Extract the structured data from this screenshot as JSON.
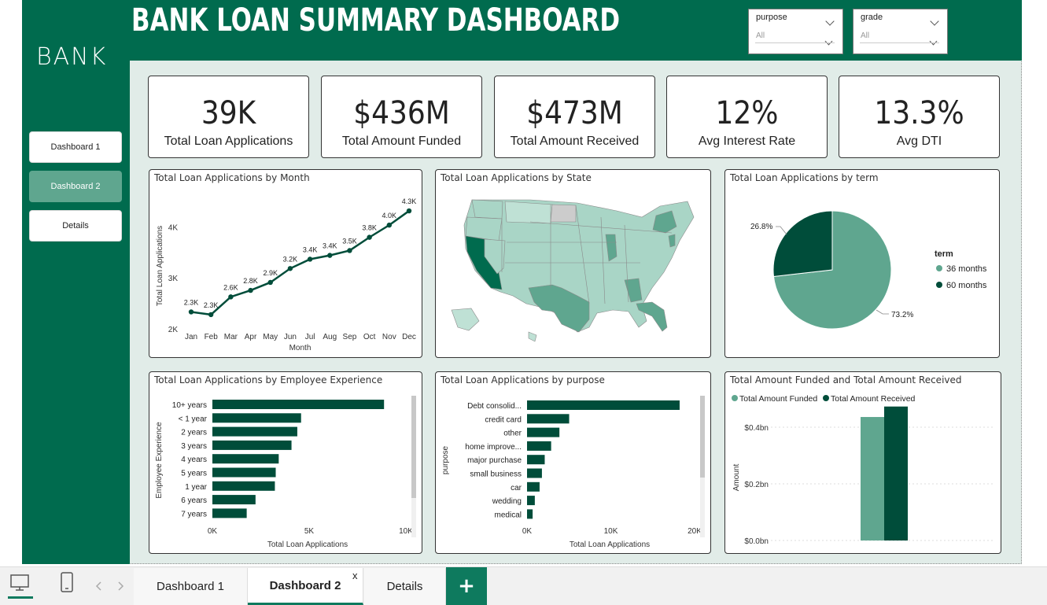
{
  "header": {
    "title": "BANK LOAN SUMMARY DASHBOARD",
    "logo": "BANK"
  },
  "filters": [
    {
      "label": "purpose",
      "value": "All"
    },
    {
      "label": "grade",
      "value": "All"
    }
  ],
  "nav": [
    {
      "label": "Dashboard 1",
      "active": false
    },
    {
      "label": "Dashboard 2",
      "active": true
    },
    {
      "label": "Details",
      "active": false
    }
  ],
  "kpis": [
    {
      "value": "39K",
      "label": "Total Loan Applications"
    },
    {
      "value": "$436M",
      "label": "Total Amount Funded"
    },
    {
      "value": "$473M",
      "label": "Total Amount Received"
    },
    {
      "value": "12%",
      "label": "Avg Interest Rate"
    },
    {
      "value": "13.3%",
      "label": "Avg DTI"
    }
  ],
  "panels": {
    "month": "Total Loan Applications by Month",
    "state": "Total Loan Applications by State",
    "term": "Total Loan Applications by term",
    "emp": "Total Loan Applications by Employee Experience",
    "purpose": "Total Loan Applications by purpose",
    "funded": "Total Amount Funded and Total Amount Received"
  },
  "colors": {
    "dark": "#004d3a",
    "mid": "#5fa68f",
    "light": "#a9d5c6",
    "brand": "#006b4e"
  },
  "chart_data": [
    {
      "id": "month",
      "type": "line",
      "title": "Total Loan Applications by Month",
      "xlabel": "Month",
      "ylabel": "Total Loan Applications",
      "categories": [
        "Jan",
        "Feb",
        "Mar",
        "Apr",
        "May",
        "Jun",
        "Jul",
        "Aug",
        "Sep",
        "Oct",
        "Nov",
        "Dec"
      ],
      "values": [
        2332,
        2279,
        2627,
        2755,
        2911,
        3184,
        3366,
        3441,
        3536,
        3796,
        4035,
        4314
      ],
      "labels": [
        "2.3K",
        "2.3K",
        "2.6K",
        "2.8K",
        "2.9K",
        "3.2K",
        "3.4K",
        "3.4K",
        "3.5K",
        "3.8K",
        "4.0K",
        "4.3K"
      ],
      "yticks": [
        "2K",
        "3K",
        "4K"
      ],
      "ylim": [
        2000,
        4500
      ]
    },
    {
      "id": "term",
      "type": "pie",
      "title": "Total Loan Applications by term",
      "legend_title": "term",
      "slices": [
        {
          "name": "36 months",
          "value": 73.2,
          "label": "73.2%"
        },
        {
          "name": "60 months",
          "value": 26.8,
          "label": "26.8%"
        }
      ]
    },
    {
      "id": "emp",
      "type": "bar",
      "orientation": "horizontal",
      "title": "Total Loan Applications by Employee Experience",
      "xlabel": "Total Loan Applications",
      "ylabel": "Employee Experience",
      "categories": [
        "10+ years",
        "< 1 year",
        "2 years",
        "3 years",
        "4 years",
        "5 years",
        "1 year",
        "6 years",
        "7 years"
      ],
      "values": [
        8870,
        4583,
        4388,
        4088,
        3428,
        3273,
        3229,
        2229,
        1773
      ],
      "xticks": [
        "0K",
        "5K",
        "10K"
      ],
      "xlim": [
        0,
        10000
      ]
    },
    {
      "id": "purpose",
      "type": "bar",
      "orientation": "horizontal",
      "title": "Total Loan Applications by purpose",
      "xlabel": "Total Loan Applications",
      "ylabel": "purpose",
      "categories": [
        "Debt consolid...",
        "credit card",
        "other",
        "home improve...",
        "major purchase",
        "small business",
        "car",
        "wedding",
        "medical"
      ],
      "values": [
        18214,
        5027,
        3865,
        2876,
        2110,
        1776,
        1497,
        928,
        667
      ],
      "xticks": [
        "0K",
        "10K",
        "20K"
      ],
      "xlim": [
        0,
        20000
      ]
    },
    {
      "id": "funded",
      "type": "bar",
      "title": "Total Amount Funded and Total Amount Received",
      "ylabel": "Amount",
      "series": [
        {
          "name": "Total Amount Funded",
          "value": 0.436
        },
        {
          "name": "Total Amount Received",
          "value": 0.473
        }
      ],
      "yticks": [
        "$0.0bn",
        "$0.2bn",
        "$0.4bn"
      ],
      "ylim": [
        0,
        0.5
      ]
    }
  ],
  "tabs": [
    {
      "label": "Dashboard 1"
    },
    {
      "label": "Dashboard 2"
    },
    {
      "label": "Details"
    }
  ],
  "tab_close": "x",
  "add_tab": "+"
}
